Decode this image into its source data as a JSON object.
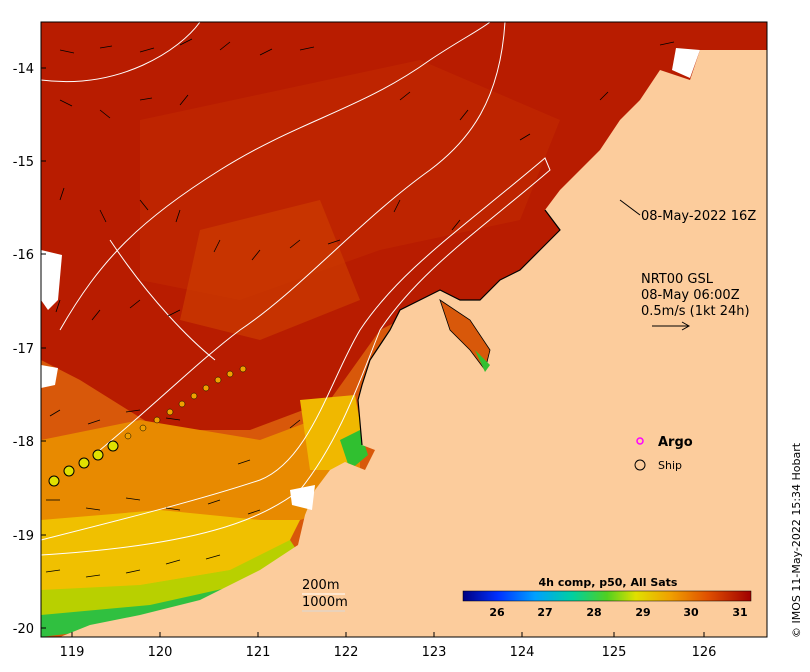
{
  "map": {
    "x_ticks": [
      "119",
      "120",
      "121",
      "122",
      "123",
      "124",
      "125",
      "126"
    ],
    "y_ticks": [
      "-14",
      "-15",
      "-16",
      "-17",
      "-18",
      "-19",
      "-20"
    ],
    "timestamp_label": "08-May-2022 16Z",
    "current_title": "NRT00 GSL",
    "current_time": "08-May 06:00Z",
    "current_scale": "0.5m/s (1kt 24h)",
    "argo_label": "Argo",
    "ship_label": "Ship",
    "isobath_200": "200m",
    "isobath_1000": "1000m",
    "colorbar_title": "4h comp, p50, All Sats",
    "colorbar_ticks": [
      "26",
      "27",
      "28",
      "29",
      "30",
      "31"
    ],
    "credit": "© IMOS 11-May-2022 15:34 Hobart",
    "colors": {
      "land": "#fccc9c",
      "sst_hot": "#b01800",
      "sst_warm": "#d84a00",
      "sst_mid": "#f0a000",
      "sst_cool": "#30c030",
      "argo": "#ff00ff",
      "track": "#f0a000"
    }
  }
}
